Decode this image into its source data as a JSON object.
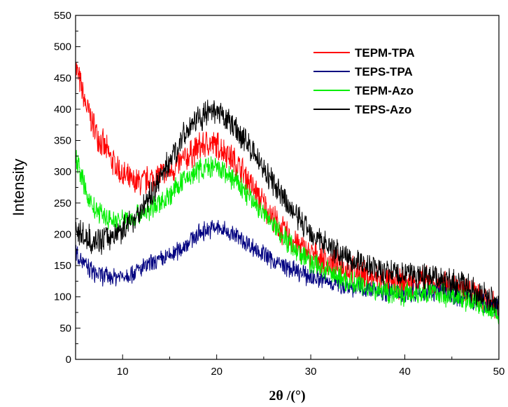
{
  "chart_data": {
    "type": "line",
    "title": "",
    "xlabel": "2θ /(°)",
    "ylabel": "Intensity",
    "xlim": [
      5,
      50
    ],
    "ylim": [
      0,
      550
    ],
    "x_ticks": [
      10,
      20,
      30,
      40,
      50
    ],
    "y_ticks": [
      0,
      50,
      100,
      150,
      200,
      250,
      300,
      350,
      400,
      450,
      500,
      550
    ],
    "grid": false,
    "legend_position": "top-right",
    "series": [
      {
        "name": "TEPM-TPA",
        "color": "#ff0000",
        "x": [
          5,
          6,
          7,
          8,
          9,
          10,
          11,
          12,
          13,
          14,
          15,
          16,
          17,
          18,
          19,
          20,
          21,
          22,
          23,
          24,
          25,
          26,
          27,
          28,
          29,
          30,
          32,
          34,
          36,
          38,
          40,
          42,
          44,
          46,
          48,
          50
        ],
        "values": [
          470,
          410,
          370,
          340,
          315,
          295,
          282,
          283,
          288,
          295,
          300,
          312,
          325,
          338,
          345,
          342,
          332,
          315,
          295,
          270,
          248,
          225,
          205,
          192,
          178,
          168,
          155,
          143,
          133,
          124,
          120,
          125,
          120,
          112,
          103,
          85
        ],
        "noise": 28
      },
      {
        "name": "TEPS-TPA",
        "color": "#000080",
        "x": [
          5,
          6,
          7,
          8,
          9,
          10,
          11,
          12,
          13,
          14,
          15,
          16,
          17,
          18,
          19,
          20,
          21,
          22,
          23,
          24,
          25,
          26,
          27,
          28,
          29,
          30,
          32,
          34,
          36,
          38,
          40,
          42,
          44,
          46,
          48,
          50
        ],
        "values": [
          175,
          150,
          138,
          133,
          132,
          134,
          138,
          145,
          152,
          158,
          165,
          175,
          188,
          200,
          208,
          210,
          205,
          198,
          188,
          178,
          168,
          158,
          150,
          143,
          137,
          132,
          124,
          117,
          112,
          108,
          106,
          110,
          108,
          100,
          92,
          80
        ],
        "noise": 18
      },
      {
        "name": "TEPM-Azo",
        "color": "#00ee00",
        "x": [
          5,
          6,
          7,
          8,
          9,
          10,
          11,
          12,
          13,
          14,
          15,
          16,
          17,
          18,
          19,
          20,
          21,
          22,
          23,
          24,
          25,
          26,
          27,
          28,
          29,
          30,
          32,
          34,
          36,
          38,
          40,
          42,
          44,
          46,
          48,
          50
        ],
        "values": [
          330,
          270,
          240,
          228,
          222,
          222,
          226,
          233,
          240,
          250,
          262,
          278,
          292,
          302,
          308,
          305,
          298,
          285,
          268,
          250,
          232,
          215,
          198,
          183,
          168,
          155,
          138,
          125,
          115,
          108,
          105,
          108,
          105,
          97,
          88,
          75
        ],
        "noise": 22
      },
      {
        "name": "TEPS-Azo",
        "color": "#000000",
        "x": [
          5,
          6,
          7,
          8,
          9,
          10,
          11,
          12,
          13,
          14,
          15,
          16,
          17,
          18,
          19,
          20,
          21,
          22,
          23,
          24,
          25,
          26,
          27,
          28,
          29,
          30,
          32,
          34,
          36,
          38,
          40,
          42,
          44,
          46,
          48,
          50
        ],
        "values": [
          205,
          195,
          190,
          192,
          198,
          208,
          222,
          240,
          262,
          290,
          318,
          345,
          370,
          385,
          393,
          392,
          385,
          370,
          350,
          330,
          305,
          280,
          258,
          238,
          220,
          205,
          180,
          162,
          150,
          140,
          135,
          135,
          128,
          118,
          105,
          92
        ],
        "noise": 25
      }
    ]
  }
}
